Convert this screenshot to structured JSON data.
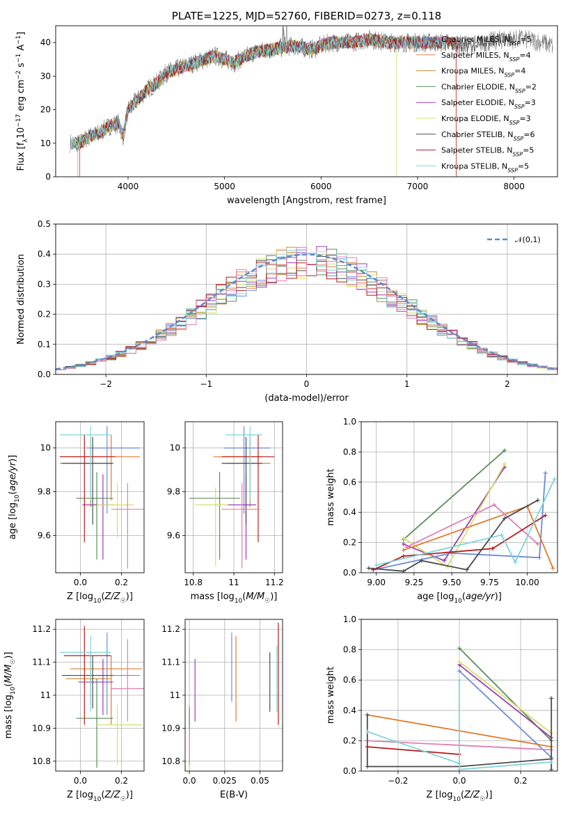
{
  "colors": {
    "chabrier_miles": "#6b8bd6",
    "salpeter_miles": "#dd8452",
    "kroupa_miles": "#c98a2e",
    "chabrier_elodie": "#5a8e5a",
    "salpeter_elodie": "#9b3cb5",
    "kroupa_elodie": "#d4e06a",
    "chabrier_stelib": "#4a4a4a",
    "salpeter_stelib": "#b31b1b",
    "kroupa_stelib": "#7fd4d8",
    "pink": "#e07fb2",
    "orange": "#e07a2a"
  },
  "chart_data": [
    {
      "type": "line",
      "title": "PLATE=1225, MJD=52760, FIBERID=0273, z=0.118",
      "xlabel": "wavelength [Angstrom, rest frame]",
      "ylabel": "Flux [f_λ 10^-17 erg cm^-2 s^-1 A^-1]",
      "xlim": [
        3250,
        8450
      ],
      "ylim": [
        0,
        45
      ],
      "xticks": [
        4000,
        5000,
        6000,
        7000,
        8000
      ],
      "yticks": [
        0,
        10,
        20,
        30,
        40
      ],
      "legend_placement": "right",
      "legend": [
        {
          "base": "Chabrier MILES, N",
          "sub": "SSP",
          "tail": "=5"
        },
        {
          "base": "Salpeter MILES, N",
          "sub": "SSP",
          "tail": "=4"
        },
        {
          "base": "Kroupa MILES, N",
          "sub": "SSP",
          "tail": "=4"
        },
        {
          "base": "Chabrier ELODIE, N",
          "sub": "SSP",
          "tail": "=2"
        },
        {
          "base": "Salpeter ELODIE, N",
          "sub": "SSP",
          "tail": "=3"
        },
        {
          "base": "Kroupa ELODIE, N",
          "sub": "SSP",
          "tail": "=3"
        },
        {
          "base": "Chabrier STELIB, N",
          "sub": "SSP",
          "tail": "=6"
        },
        {
          "base": "Salpeter STELIB, N",
          "sub": "SSP",
          "tail": "=5"
        },
        {
          "base": "Kroupa STELIB, N",
          "sub": "SSP",
          "tail": "=5"
        }
      ],
      "envelope": {
        "x": [
          3400,
          3500,
          3600,
          3700,
          3800,
          3900,
          3950,
          4000,
          4100,
          4200,
          4300,
          4400,
          4500,
          4700,
          4900,
          5100,
          5300,
          5500,
          5700,
          5900,
          6100,
          6300,
          6500,
          6700,
          6900,
          7100,
          7300,
          7500,
          7700,
          7900,
          8100,
          8300,
          8400
        ],
        "y": [
          10,
          10,
          12,
          13,
          15,
          16,
          12,
          20,
          23,
          26,
          28,
          31,
          32,
          34,
          36,
          34,
          37,
          38,
          39,
          38,
          40,
          40,
          41,
          40,
          40,
          40,
          40,
          39,
          40,
          41,
          41,
          40,
          39
        ]
      }
    },
    {
      "type": "bar",
      "xlabel": "(data-model)/error",
      "ylabel": "Normed distribution",
      "xlim": [
        -2.5,
        2.5
      ],
      "ylim": [
        0,
        0.5
      ],
      "xticks": [
        -2,
        -1,
        0,
        1,
        2
      ],
      "yticks": [
        0.0,
        0.1,
        0.2,
        0.3,
        0.4,
        0.5
      ],
      "legend_label": "𝒩(0,1)",
      "bin_width": 0.1
    },
    {
      "type": "scatter",
      "xlabel": "Z [log10(Z/Z☉)]",
      "ylabel": "age [log10(age/yr)]",
      "xlim": [
        -0.12,
        0.31
      ],
      "ylim": [
        9.43,
        10.12
      ],
      "xticks": [
        0.0,
        0.2
      ],
      "yticks": [
        9.6,
        9.8,
        10.0
      ]
    },
    {
      "type": "scatter",
      "xlabel": "mass [log10(M/M☉)]",
      "ylabel": "",
      "xlim": [
        10.76,
        11.24
      ],
      "ylim": [
        9.43,
        10.12
      ],
      "xticks": [
        10.8,
        11.0,
        11.2
      ],
      "yticks": [
        9.6,
        9.8,
        10.0
      ]
    },
    {
      "type": "line",
      "xlabel": "age [log10(age/yr)]",
      "ylabel": "mass weight",
      "xlim": [
        8.9,
        10.2
      ],
      "ylim": [
        0,
        1.0
      ],
      "xticks": [
        9.0,
        9.25,
        9.5,
        9.75,
        10.0
      ],
      "yticks": [
        0.0,
        0.2,
        0.4,
        0.6,
        0.8,
        1.0
      ]
    },
    {
      "type": "scatter",
      "xlabel": "Z [log10(Z/Z☉)]",
      "ylabel": "mass [log10(M/M☉)]",
      "xlim": [
        -0.12,
        0.31
      ],
      "ylim": [
        10.77,
        11.23
      ],
      "xticks": [
        0.0,
        0.2
      ],
      "yticks": [
        10.8,
        10.9,
        11.0,
        11.1,
        11.2
      ]
    },
    {
      "type": "scatter",
      "xlabel": "E(B-V)",
      "ylabel": "",
      "xlim": [
        -0.003,
        0.066
      ],
      "ylim": [
        10.77,
        11.23
      ],
      "xticks": [
        0.0,
        0.025,
        0.05
      ],
      "yticks": [
        10.8,
        10.9,
        11.0,
        11.1,
        11.2
      ]
    },
    {
      "type": "line",
      "xlabel": "Z [log10(Z/Z☉)]",
      "ylabel": "mass weight",
      "xlim": [
        -0.32,
        0.32
      ],
      "ylim": [
        0,
        1.0
      ],
      "xticks": [
        -0.2,
        0.0,
        0.2
      ],
      "yticks": [
        0.0,
        0.2,
        0.4,
        0.6,
        0.8,
        1.0
      ]
    }
  ]
}
